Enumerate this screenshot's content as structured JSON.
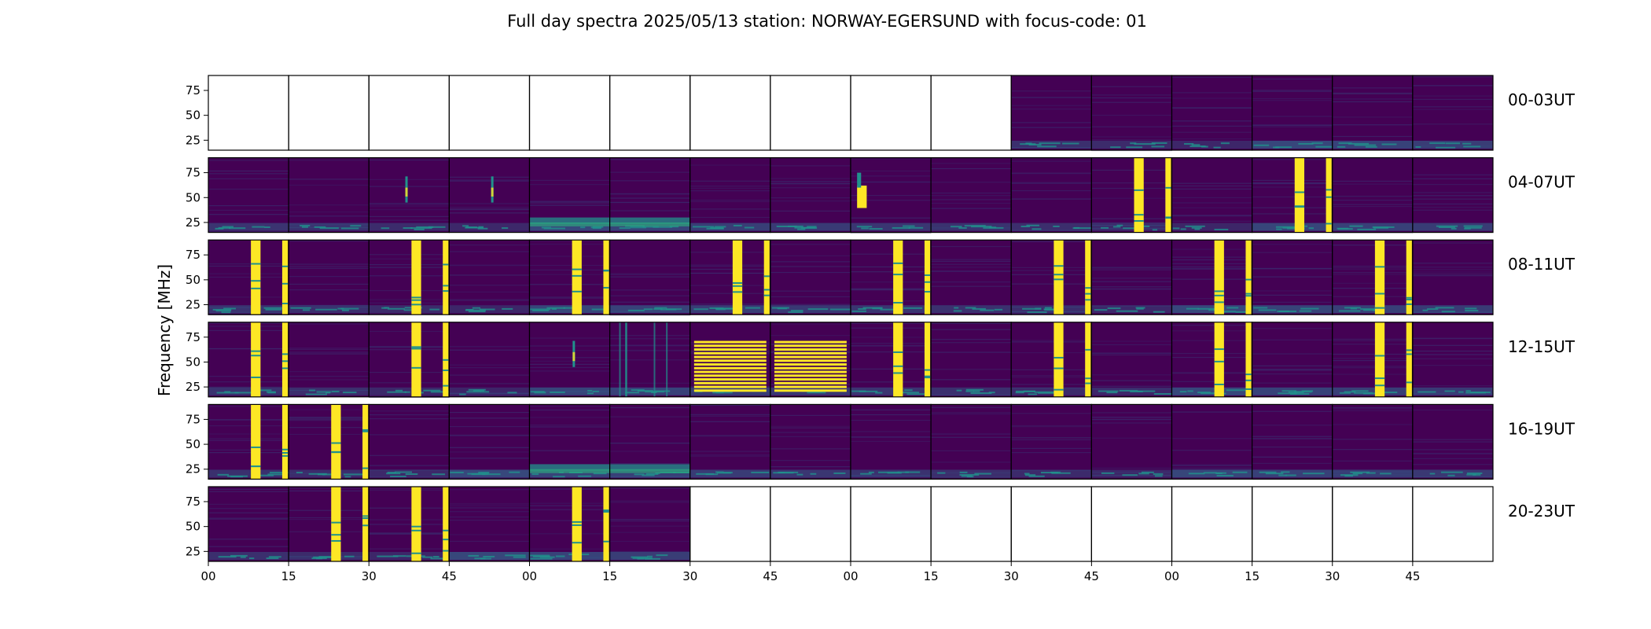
{
  "chart_data": {
    "type": "heatmap",
    "title": "Full day spectra 2025/05/13 station: NORWAY-EGERSUND with focus-code: 01",
    "ylabel": "Frequency [MHz]",
    "xlabel": "",
    "ylim": [
      15,
      90
    ],
    "yticks": [
      25,
      50,
      75
    ],
    "xticks": [
      "00",
      "15",
      "30",
      "45",
      "00",
      "15",
      "30",
      "45",
      "00",
      "15",
      "30",
      "45",
      "00",
      "15",
      "30",
      "45"
    ],
    "colormap": "viridis",
    "colors": {
      "low": "#440154",
      "mid": "#21918c",
      "high": "#fde725"
    },
    "rows": [
      {
        "label": "00-03UT",
        "panels": [
          "empty",
          "empty",
          "empty",
          "empty",
          "empty",
          "empty",
          "empty",
          "empty",
          "empty",
          "empty",
          "quiet",
          "quiet",
          "quiet",
          "quiet",
          "quiet",
          "quiet"
        ]
      },
      {
        "label": "04-07UT",
        "panels": [
          "quiet",
          "quiet",
          "spike",
          "spike",
          "band",
          "band",
          "quiet",
          "quiet",
          "burst",
          "quiet",
          "quiet",
          "bars",
          "quiet",
          "bars",
          "quiet",
          "quiet"
        ]
      },
      {
        "label": "08-11UT",
        "panels": [
          "bars",
          "quiet",
          "bars",
          "quiet",
          "bars",
          "quiet",
          "bars",
          "quiet",
          "bars",
          "quiet",
          "bars",
          "quiet",
          "bars",
          "quiet",
          "bars",
          "quiet"
        ]
      },
      {
        "label": "12-15UT",
        "panels": [
          "bars",
          "quiet",
          "bars",
          "quiet",
          "spike",
          "lines",
          "grid",
          "grid",
          "bars",
          "quiet",
          "bars",
          "quiet",
          "bars",
          "quiet",
          "bars",
          "quiet"
        ]
      },
      {
        "label": "16-19UT",
        "panels": [
          "bars",
          "bars",
          "quiet",
          "quiet",
          "band",
          "band",
          "quiet",
          "quiet",
          "quiet",
          "quiet",
          "quiet",
          "quiet",
          "quiet",
          "quiet",
          "quiet",
          "quiet"
        ]
      },
      {
        "label": "20-23UT",
        "panels": [
          "quiet",
          "bars",
          "bars",
          "quiet",
          "bars",
          "quiet",
          "empty",
          "empty",
          "empty",
          "empty",
          "empty",
          "empty",
          "empty",
          "empty",
          "empty",
          "empty"
        ]
      }
    ]
  }
}
